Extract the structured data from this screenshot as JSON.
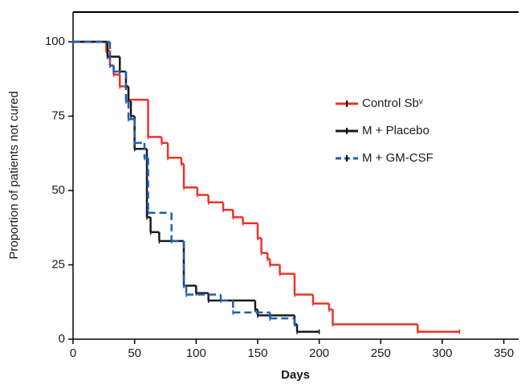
{
  "chart_data": {
    "type": "line",
    "step": true,
    "xlabel": "Days",
    "ylabel": "Proportion of patients not cured",
    "xlim": [
      0,
      362
    ],
    "ylim": [
      0,
      110
    ],
    "xticks": [
      0,
      50,
      100,
      150,
      200,
      250,
      300,
      350
    ],
    "yticks": [
      0,
      25,
      50,
      75,
      100
    ],
    "series": [
      {
        "name": "Control  Sbᵛ",
        "color": "#e8332a",
        "dashed": false,
        "x": [
          0,
          27,
          30,
          33,
          38,
          45,
          61,
          72,
          77,
          88,
          90,
          101,
          110,
          122,
          130,
          138,
          150,
          153,
          158,
          160,
          168,
          180,
          195,
          208,
          211,
          280,
          314
        ],
        "values": [
          100,
          97,
          92,
          89,
          85,
          80.5,
          68,
          66,
          61,
          59,
          51,
          48.5,
          46,
          43.5,
          41,
          39,
          34,
          29,
          27,
          25,
          22,
          15,
          12,
          10,
          5,
          2.5,
          2.5
        ]
      },
      {
        "name": "M + Placebo",
        "color": "#1a1a1a",
        "dashed": false,
        "x": [
          0,
          28,
          38,
          43,
          45,
          47,
          50,
          60,
          63,
          70,
          90,
          100,
          110,
          148,
          150,
          180,
          182,
          200
        ],
        "values": [
          100,
          95,
          90,
          85,
          80,
          75,
          64,
          41,
          36,
          33,
          18,
          15.5,
          13,
          10,
          8,
          5,
          2.5,
          2.5
        ]
      },
      {
        "name": "M + GM-CSF",
        "color": "#1f5fb0",
        "dashed": true,
        "x": [
          0,
          30,
          33,
          43,
          45,
          50,
          58,
          61,
          80,
          90,
          92,
          120,
          130,
          160,
          180
        ],
        "values": [
          100,
          92,
          90,
          80,
          74,
          66,
          61,
          42.5,
          33,
          18,
          15,
          13,
          9,
          7,
          5
        ]
      }
    ]
  }
}
